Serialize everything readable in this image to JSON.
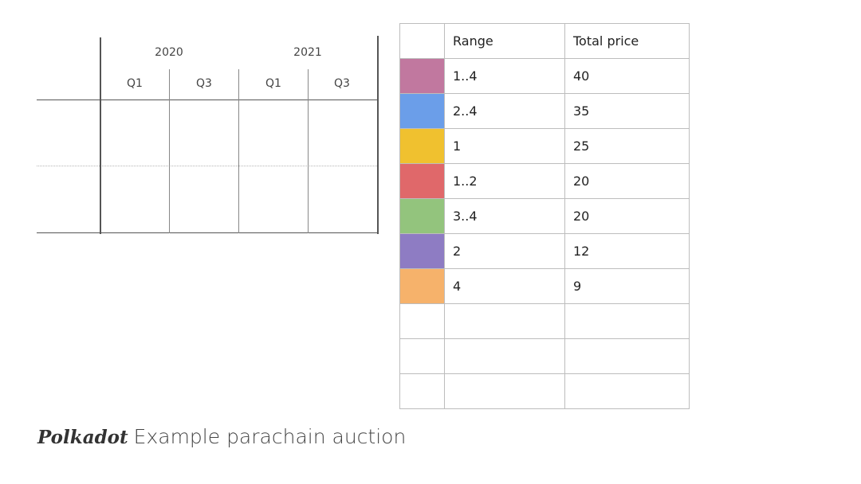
{
  "timeline": {
    "years": [
      "2020",
      "2021"
    ],
    "quarters": [
      "Q1",
      "Q3",
      "Q1",
      "Q3"
    ]
  },
  "table": {
    "headers": [
      "",
      "Range",
      "Total price"
    ],
    "rows": [
      {
        "color": "#c1789f",
        "range": "1..4",
        "price": "40"
      },
      {
        "color": "#6b9ee9",
        "range": "2..4",
        "price": "35"
      },
      {
        "color": "#f0c12f",
        "range": "1",
        "price": "25"
      },
      {
        "color": "#e0686a",
        "range": "1..2",
        "price": "20"
      },
      {
        "color": "#93c47d",
        "range": "3..4",
        "price": "20"
      },
      {
        "color": "#8e7cc3",
        "range": "2",
        "price": "12"
      },
      {
        "color": "#f6b26b",
        "range": "4",
        "price": "9"
      },
      {
        "color": "",
        "range": "",
        "price": ""
      },
      {
        "color": "",
        "range": "",
        "price": ""
      },
      {
        "color": "",
        "range": "",
        "price": ""
      }
    ]
  },
  "caption": {
    "brand": "Polkadot",
    "title": "Example parachain auction"
  }
}
